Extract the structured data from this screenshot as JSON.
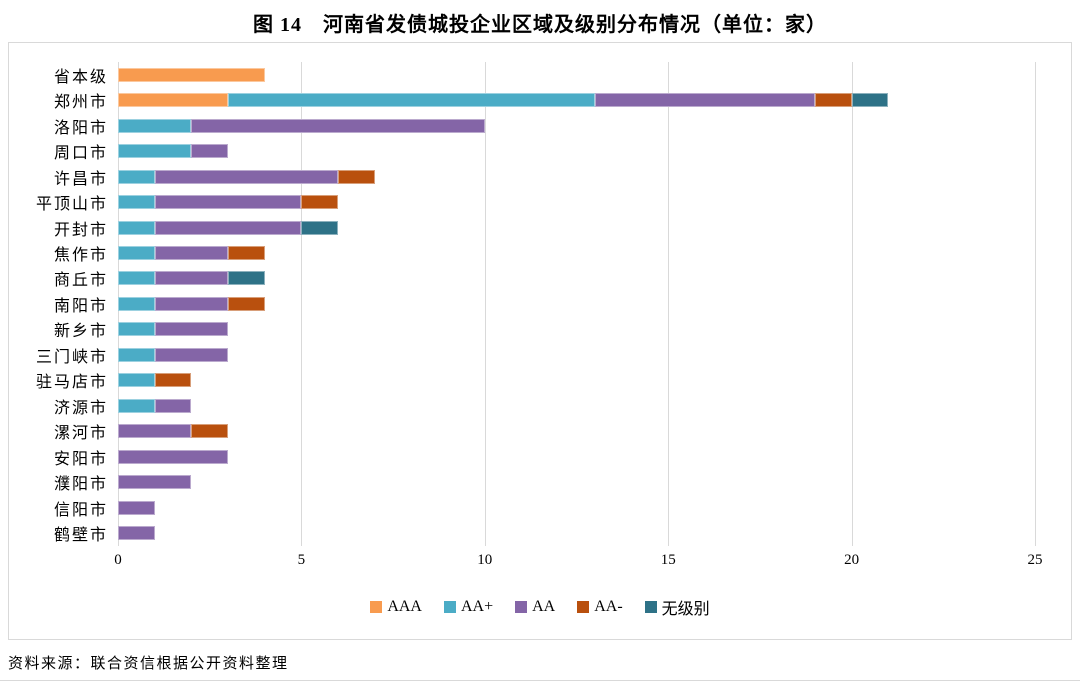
{
  "figure": {
    "title": "图 14　河南省发债城投企业区域及级别分布情况（单位：家）",
    "source": "资料来源：联合资信根据公开资料整理"
  },
  "chart_data": {
    "type": "bar",
    "orientation": "horizontal",
    "stacked": true,
    "title": "图 14　河南省发债城投企业区域及级别分布情况（单位：家）",
    "xlabel": "",
    "ylabel": "",
    "xlim": [
      0,
      25
    ],
    "xticks": [
      0,
      5,
      10,
      15,
      20,
      25
    ],
    "grid": "vertical",
    "legend_position": "bottom",
    "categories": [
      "省本级",
      "郑州市",
      "洛阳市",
      "周口市",
      "许昌市",
      "平顶山市",
      "开封市",
      "焦作市",
      "商丘市",
      "南阳市",
      "新乡市",
      "三门峡市",
      "驻马店市",
      "济源市",
      "漯河市",
      "安阳市",
      "濮阳市",
      "信阳市",
      "鹤壁市"
    ],
    "series": [
      {
        "name": "AAA",
        "key": "aaa",
        "color": "#F89B4F",
        "values": [
          4,
          3,
          0,
          0,
          0,
          0,
          0,
          0,
          0,
          0,
          0,
          0,
          0,
          0,
          0,
          0,
          0,
          0,
          0
        ]
      },
      {
        "name": "AA+",
        "key": "aa-plus",
        "color": "#4BACC6",
        "values": [
          0,
          10,
          2,
          2,
          1,
          1,
          1,
          1,
          1,
          1,
          1,
          1,
          1,
          1,
          0,
          0,
          0,
          0,
          0
        ]
      },
      {
        "name": "AA",
        "key": "aa",
        "color": "#8465A7",
        "values": [
          0,
          6,
          8,
          1,
          5,
          4,
          4,
          2,
          2,
          2,
          2,
          2,
          0,
          1,
          2,
          3,
          2,
          1,
          1
        ]
      },
      {
        "name": "AA-",
        "key": "aa-minus",
        "color": "#B9500E",
        "values": [
          0,
          1,
          0,
          0,
          1,
          1,
          0,
          1,
          0,
          1,
          0,
          0,
          1,
          0,
          1,
          0,
          0,
          0,
          0
        ]
      },
      {
        "name": "无级别",
        "key": "no-rating",
        "color": "#2E7287",
        "values": [
          0,
          1,
          0,
          0,
          0,
          0,
          1,
          0,
          1,
          0,
          0,
          0,
          0,
          0,
          0,
          0,
          0,
          0,
          0
        ]
      }
    ],
    "gridline_color": "#d9d9d9"
  }
}
